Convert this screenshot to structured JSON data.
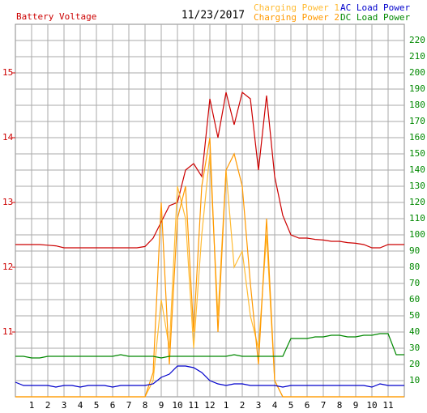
{
  "chart_data": {
    "type": "line",
    "title": "11/23/2017",
    "x": [
      0,
      0.5,
      1,
      1.5,
      2,
      2.5,
      3,
      3.5,
      4,
      4.5,
      5,
      5.5,
      6,
      6.5,
      7,
      7.5,
      8,
      8.5,
      9,
      9.5,
      10,
      10.5,
      11,
      11.5,
      12,
      12.5,
      13,
      13.5,
      14,
      14.5,
      15,
      15.5,
      16,
      16.5,
      17,
      17.5,
      18,
      18.5,
      19,
      19.5,
      20,
      20.5,
      21,
      21.5,
      22,
      22.5,
      23,
      23.5,
      24
    ],
    "xlim": [
      0,
      24
    ],
    "xticks": [
      1,
      2,
      3,
      4,
      5,
      6,
      7,
      8,
      9,
      10,
      11,
      12,
      {
        "value": 13,
        "label": "1"
      },
      {
        "value": 14,
        "label": "2"
      },
      {
        "value": 15,
        "label": "3"
      },
      {
        "value": 16,
        "label": "4"
      },
      {
        "value": 17,
        "label": "5"
      },
      {
        "value": 18,
        "label": "6"
      },
      {
        "value": 19,
        "label": "7"
      },
      {
        "value": 20,
        "label": "8"
      },
      {
        "value": 21,
        "label": "9"
      },
      {
        "value": 22,
        "label": "10"
      },
      {
        "value": 23,
        "label": "11"
      }
    ],
    "ylim": [
      10,
      15.75
    ],
    "yticks": [
      11,
      12,
      13,
      14,
      15
    ],
    "y2lim": [
      0,
      230
    ],
    "y2ticks": [
      10,
      20,
      30,
      40,
      50,
      60,
      70,
      80,
      90,
      100,
      110,
      120,
      130,
      140,
      150,
      160,
      170,
      180,
      190,
      200,
      210,
      220
    ],
    "grid": true,
    "series": [
      {
        "name": "Battery Voltage",
        "color": "#cc0000",
        "axis": "y",
        "values": [
          12.35,
          12.35,
          12.35,
          12.35,
          12.34,
          12.33,
          12.3,
          12.3,
          12.3,
          12.3,
          12.3,
          12.3,
          12.3,
          12.3,
          12.3,
          12.3,
          12.32,
          12.45,
          12.7,
          12.95,
          13.0,
          13.5,
          13.6,
          13.4,
          14.6,
          14.0,
          14.7,
          14.2,
          14.7,
          14.6,
          13.5,
          14.65,
          13.4,
          12.8,
          12.5,
          12.45,
          12.45,
          12.43,
          12.42,
          12.4,
          12.4,
          12.38,
          12.37,
          12.35,
          12.3,
          12.3,
          12.35,
          12.35,
          12.35
        ]
      },
      {
        "name": "Charging Power 1",
        "color": "#ffbb33",
        "axis": "y2",
        "values": [
          0,
          0,
          0,
          0,
          0,
          0,
          0,
          0,
          0,
          0,
          0,
          0,
          0,
          0,
          0,
          0,
          0,
          10,
          60,
          30,
          130,
          110,
          30,
          100,
          150,
          50,
          140,
          80,
          90,
          50,
          30,
          100,
          10,
          0,
          0,
          0,
          0,
          0,
          0,
          0,
          0,
          0,
          0,
          0,
          0,
          0,
          0,
          0,
          0
        ]
      },
      {
        "name": "Charging Power 2",
        "color": "#ff9900",
        "axis": "y2",
        "values": [
          0,
          0,
          0,
          0,
          0,
          0,
          0,
          0,
          0,
          0,
          0,
          0,
          0,
          0,
          0,
          0,
          0,
          15,
          120,
          20,
          110,
          130,
          40,
          130,
          160,
          40,
          140,
          150,
          130,
          70,
          20,
          110,
          10,
          0,
          0,
          0,
          0,
          0,
          0,
          0,
          0,
          0,
          0,
          0,
          0,
          0,
          0,
          0,
          0
        ]
      },
      {
        "name": "AC Load Power",
        "color": "#0000cc",
        "axis": "y2",
        "values": [
          9,
          7,
          7,
          7,
          7,
          6,
          7,
          7,
          6,
          7,
          7,
          7,
          6,
          7,
          7,
          7,
          7,
          8,
          12,
          14,
          19,
          19,
          18,
          15,
          10,
          8,
          7,
          8,
          8,
          7,
          7,
          7,
          7,
          6,
          7,
          7,
          7,
          7,
          7,
          7,
          7,
          7,
          7,
          7,
          6,
          8,
          7,
          7,
          7
        ]
      },
      {
        "name": "DC Load Power",
        "color": "#008800",
        "axis": "y2",
        "values": [
          25,
          25,
          24,
          24,
          25,
          25,
          25,
          25,
          25,
          25,
          25,
          25,
          25,
          26,
          25,
          25,
          25,
          25,
          24,
          25,
          25,
          25,
          25,
          25,
          25,
          25,
          25,
          26,
          25,
          25,
          25,
          25,
          25,
          25,
          36,
          36,
          36,
          37,
          37,
          38,
          38,
          37,
          37,
          38,
          38,
          39,
          39,
          26,
          26
        ]
      }
    ]
  }
}
